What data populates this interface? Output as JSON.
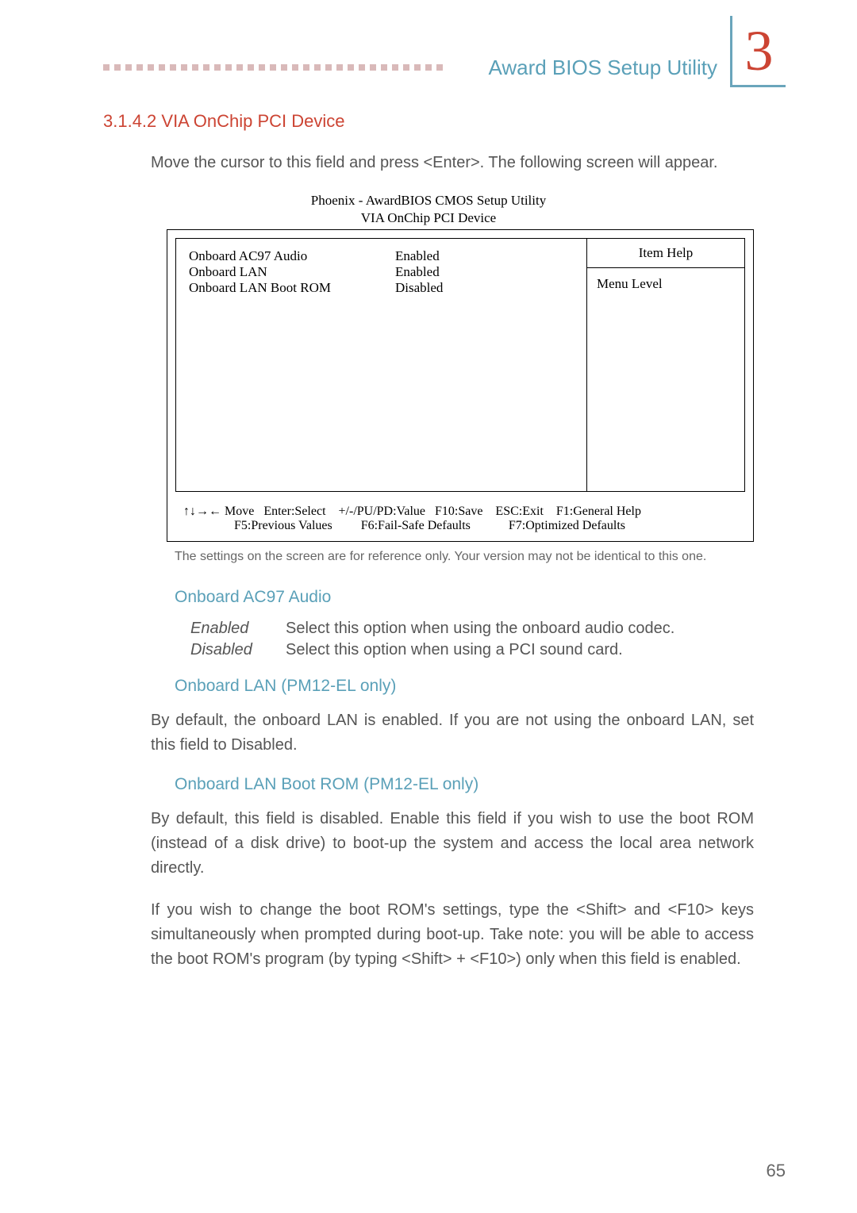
{
  "header": {
    "title": "Award BIOS Setup Utility",
    "chapter": "3",
    "dot_count": 31,
    "dot_color": "#d9b9b9",
    "title_color": "#5aa0b8",
    "chapter_color": "#cc4433"
  },
  "section": {
    "number_label": "3.1.4.2  VIA OnChip PCI Device",
    "intro": "Move the cursor to this field and press <Enter>. The following screen will appear."
  },
  "bios": {
    "title": "Phoenix - AwardBIOS CMOS Setup Utility",
    "subtitle": "VIA OnChip PCI Device",
    "rows": [
      {
        "label": "Onboard AC97 Audio",
        "value": "Enabled"
      },
      {
        "label": "Onboard LAN",
        "value": "Enabled"
      },
      {
        "label": "Onboard LAN Boot ROM",
        "value": "Disabled"
      }
    ],
    "help_title": "Item Help",
    "help_body": "Menu Level",
    "footer_l1": "↑↓→← Move   Enter:Select    +/-/PU/PD:Value   F10:Save    ESC:Exit    F1:General Help",
    "footer_l2": "                F5:Previous Values         F6:Fail-Safe Defaults            F7:Optimized Defaults"
  },
  "caption": "The settings on the screen are for reference only. Your version may not be identical to this one.",
  "ac97": {
    "heading": "Onboard AC97 Audio",
    "enabled_term": "Enabled",
    "enabled_desc": "Select this option when using the onboard audio codec.",
    "disabled_term": "Disabled",
    "disabled_desc": "Select this option when using a PCI sound card."
  },
  "lan": {
    "heading": "Onboard LAN (PM12-EL only)",
    "body": "By default, the onboard LAN is enabled. If you are not using the onboard LAN, set this field to Disabled."
  },
  "bootrom": {
    "heading": "Onboard LAN Boot ROM (PM12-EL only)",
    "p1": "By default, this field is disabled. Enable this field if you wish to use the boot ROM (instead of a disk drive) to boot-up the system and access the local area network directly.",
    "p2": "If you wish to change the boot ROM's settings, type the <Shift> and <F10> keys simultaneously when prompted during boot-up. Take note: you will be able to access the boot ROM's program (by typing <Shift> + <F10>) only when this field is enabled."
  },
  "page_number": "65"
}
